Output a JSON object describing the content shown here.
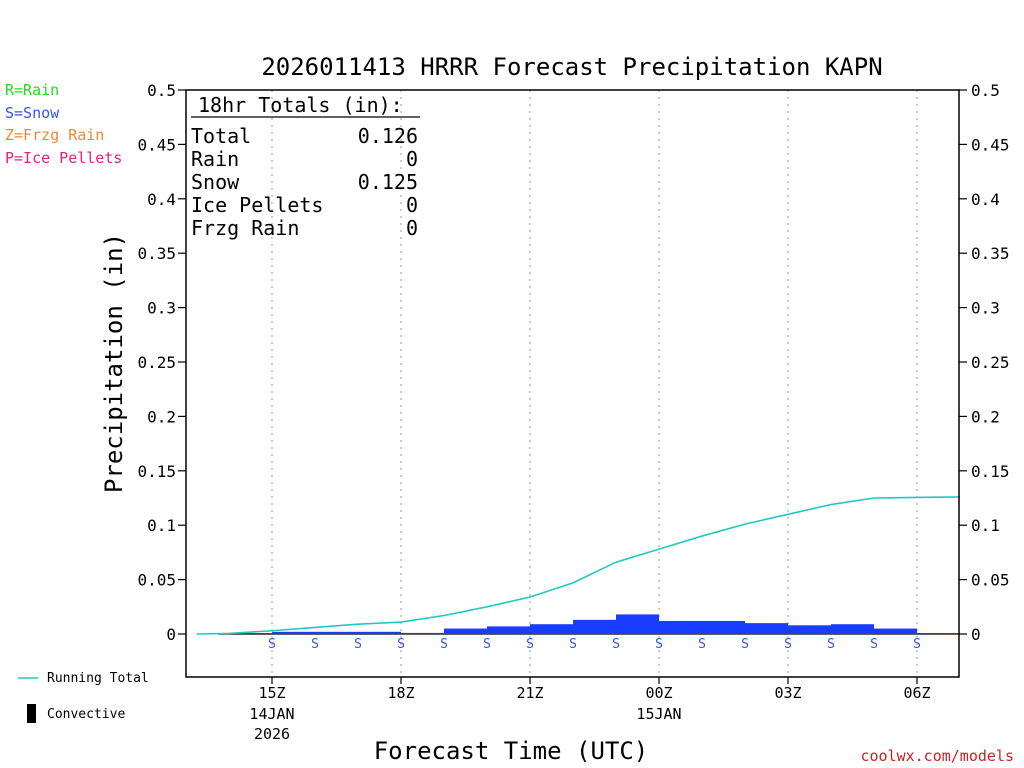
{
  "chart_data": {
    "type": "bar",
    "title": "2026011413 HRRR Forecast Precipitation KAPN",
    "ylabel": "Precipitation (in)",
    "xlabel": "Forecast Time (UTC)",
    "ylim": [
      -0.04,
      0.5
    ],
    "yticks": [
      0,
      0.05,
      0.1,
      0.15,
      0.2,
      0.25,
      0.3,
      0.35,
      0.4,
      0.45,
      0.5
    ],
    "ytick_labels": [
      "0",
      "0.05",
      "0.1",
      "0.15",
      "0.2",
      "0.25",
      "0.3",
      "0.35",
      "0.4",
      "0.45",
      "0.5"
    ],
    "xlim_hours": [
      13.0,
      31.0
    ],
    "xticks": [
      {
        "hour": 15,
        "label": "15Z",
        "sub1": "14JAN",
        "sub2": "2026"
      },
      {
        "hour": 18,
        "label": "18Z",
        "sub1": "",
        "sub2": ""
      },
      {
        "hour": 21,
        "label": "21Z",
        "sub1": "",
        "sub2": ""
      },
      {
        "hour": 24,
        "label": "00Z",
        "sub1": "15JAN",
        "sub2": ""
      },
      {
        "hour": 27,
        "label": "03Z",
        "sub1": "",
        "sub2": ""
      },
      {
        "hour": 30,
        "label": "06Z",
        "sub1": "",
        "sub2": ""
      }
    ],
    "bar_hours": [
      14,
      15,
      16,
      17,
      18,
      19,
      20,
      21,
      22,
      23,
      24,
      25,
      26,
      27,
      28,
      29,
      30
    ],
    "hourly_precip": [
      0.0005,
      0.002,
      0.002,
      0.002,
      0.001,
      0.005,
      0.007,
      0.009,
      0.013,
      0.018,
      0.012,
      0.012,
      0.01,
      0.008,
      0.009,
      0.005,
      0.0005
    ],
    "convective": [
      0,
      0,
      0,
      0,
      0,
      0,
      0,
      0,
      0,
      0,
      0,
      0,
      0,
      0,
      0,
      0,
      0
    ],
    "ptype_markers": [
      "S",
      "S",
      "S",
      "S",
      "S",
      "S",
      "S",
      "S",
      "S",
      "S",
      "S",
      "S",
      "S",
      "S",
      "S",
      "S"
    ],
    "ptype_marker_hours": [
      15,
      16,
      17,
      18,
      19,
      20,
      21,
      22,
      23,
      24,
      25,
      26,
      27,
      28,
      29,
      30
    ],
    "running_total": {
      "hours": [
        13.25,
        14,
        15,
        16,
        17,
        18,
        19,
        20,
        21,
        22,
        23,
        24,
        25,
        26,
        27,
        28,
        29,
        30,
        31
      ],
      "values": [
        0,
        0.0005,
        0.003,
        0.006,
        0.009,
        0.011,
        0.017,
        0.025,
        0.034,
        0.047,
        0.066,
        0.078,
        0.09,
        0.101,
        0.11,
        0.119,
        0.125,
        0.1255,
        0.126
      ]
    },
    "totals_box": {
      "heading": "18hr Totals (in):",
      "rows": [
        {
          "label": "Total",
          "value": "0.126"
        },
        {
          "label": "Rain",
          "value": "0"
        },
        {
          "label": "Snow",
          "value": "0.125"
        },
        {
          "label": "Ice Pellets",
          "value": "0"
        },
        {
          "label": "Frzg Rain",
          "value": "0"
        }
      ]
    },
    "ptype_legend": [
      {
        "text": "R=Rain",
        "color": "#22dd22"
      },
      {
        "text": "S=Snow",
        "color": "#3355ee"
      },
      {
        "text": "Z=Frzg Rain",
        "color": "#ee8833"
      },
      {
        "text": "P=Ice Pellets",
        "color": "#dd2288"
      }
    ],
    "series_legend": {
      "running_total": "Running Total",
      "convective": "Convective"
    },
    "colors": {
      "bar": "#1a3cff",
      "running_total": "#1fc8c0",
      "snow_marker": "#3355ee",
      "convective": "#000000"
    },
    "credit": "coolwx.com/models"
  }
}
